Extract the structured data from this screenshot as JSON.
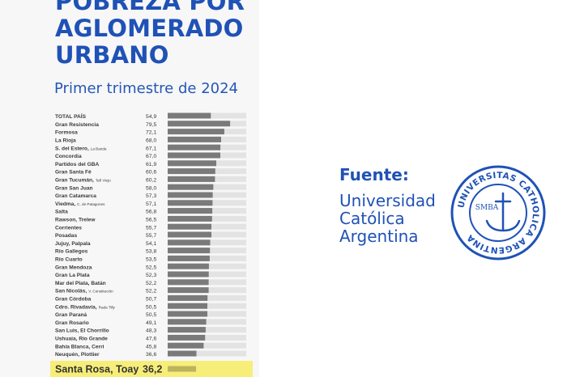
{
  "header": {
    "title_lines": [
      "POBREZA POR",
      "AGLOMERADO",
      "URBANO"
    ],
    "subtitle": "Primer trimestre de 2024"
  },
  "source": {
    "label": "Fuente:",
    "org_lines": [
      "Universidad",
      "Católica",
      "Argentina"
    ],
    "seal_top_text": "UNIVERSITAS CATHOLICA ARGENTINA",
    "seal_center_text": "SMBA"
  },
  "colors": {
    "accent": "#1f52b6",
    "bar": "#7a7a7a",
    "track": "#e3e3e3",
    "highlight": "#f7ee7a",
    "highlight_bar": "#bdb35d"
  },
  "chart_data": {
    "type": "bar",
    "orientation": "horizontal",
    "xlim": [
      0,
      100
    ],
    "categories": [
      {
        "name": "TOTAL PAÍS",
        "value": 54.9,
        "label": "54,9",
        "bold": true
      },
      {
        "name": "Gran Resistencia",
        "value": 79.5,
        "label": "79,5"
      },
      {
        "name": "Formosa",
        "value": 72.1,
        "label": "72,1"
      },
      {
        "name": "La Rioja",
        "value": 68.0,
        "label": "68,0"
      },
      {
        "name": "S. del Estero,",
        "note": "La Banda",
        "value": 67.1,
        "label": "67,1"
      },
      {
        "name": "Concordia",
        "value": 67.0,
        "label": "67,0"
      },
      {
        "name": "Partidos del GBA",
        "value": 61.9,
        "label": "61,9"
      },
      {
        "name": "Gran Santa Fé",
        "value": 60.6,
        "label": "60,6"
      },
      {
        "name": "Gran Tucumán,",
        "note": "Tafí Viejo",
        "value": 60.2,
        "label": "60,2"
      },
      {
        "name": "Gran San Juan",
        "value": 58.0,
        "label": "58,0"
      },
      {
        "name": "Gran Catamarca",
        "value": 57.3,
        "label": "57,3"
      },
      {
        "name": "Viedma,",
        "note": "C. de Patagones",
        "value": 57.1,
        "label": "57,1"
      },
      {
        "name": "Salta",
        "value": 56.8,
        "label": "56,8"
      },
      {
        "name": "Rawson, Trelew",
        "value": 56.5,
        "label": "56,5"
      },
      {
        "name": "Corrientes",
        "value": 55.7,
        "label": "55,7"
      },
      {
        "name": "Posadas",
        "value": 55.7,
        "label": "55,7"
      },
      {
        "name": "Jujuy, Palpala",
        "value": 54.1,
        "label": "54,1"
      },
      {
        "name": "Río Gallegos",
        "value": 53.8,
        "label": "53,8"
      },
      {
        "name": "Río Cuarto",
        "value": 53.5,
        "label": "53,5"
      },
      {
        "name": "Gran Mendoza",
        "value": 52.5,
        "label": "52,5"
      },
      {
        "name": "Gran La Plata",
        "value": 52.3,
        "label": "52,3"
      },
      {
        "name": "Mar del Plata, Batán",
        "value": 52.2,
        "label": "52,2"
      },
      {
        "name": "San Nicolás,",
        "note": "V. Constitución",
        "value": 52.2,
        "label": "52,2"
      },
      {
        "name": "Gran Córdoba",
        "value": 50.7,
        "label": "50,7"
      },
      {
        "name": "Cdro. Rivadavia,",
        "note": "Rada Tilly",
        "value": 50.5,
        "label": "50,5"
      },
      {
        "name": "Gran Paraná",
        "value": 50.5,
        "label": "50,5"
      },
      {
        "name": "Gran Rosario",
        "value": 49.1,
        "label": "49,1"
      },
      {
        "name": "San Luis, El Chorrillo",
        "value": 48.3,
        "label": "48,3"
      },
      {
        "name": "Ushuaia, Río Grande",
        "value": 47.6,
        "label": "47,6"
      },
      {
        "name": "Bahía Blanca, Cerri",
        "value": 45.8,
        "label": "45,8"
      },
      {
        "name": "Neuquén, Plottier",
        "value": 36.6,
        "label": "36,6"
      }
    ],
    "highlight": {
      "name": "Santa Rosa, Toay",
      "value": 36.2,
      "label": "36,2"
    }
  }
}
